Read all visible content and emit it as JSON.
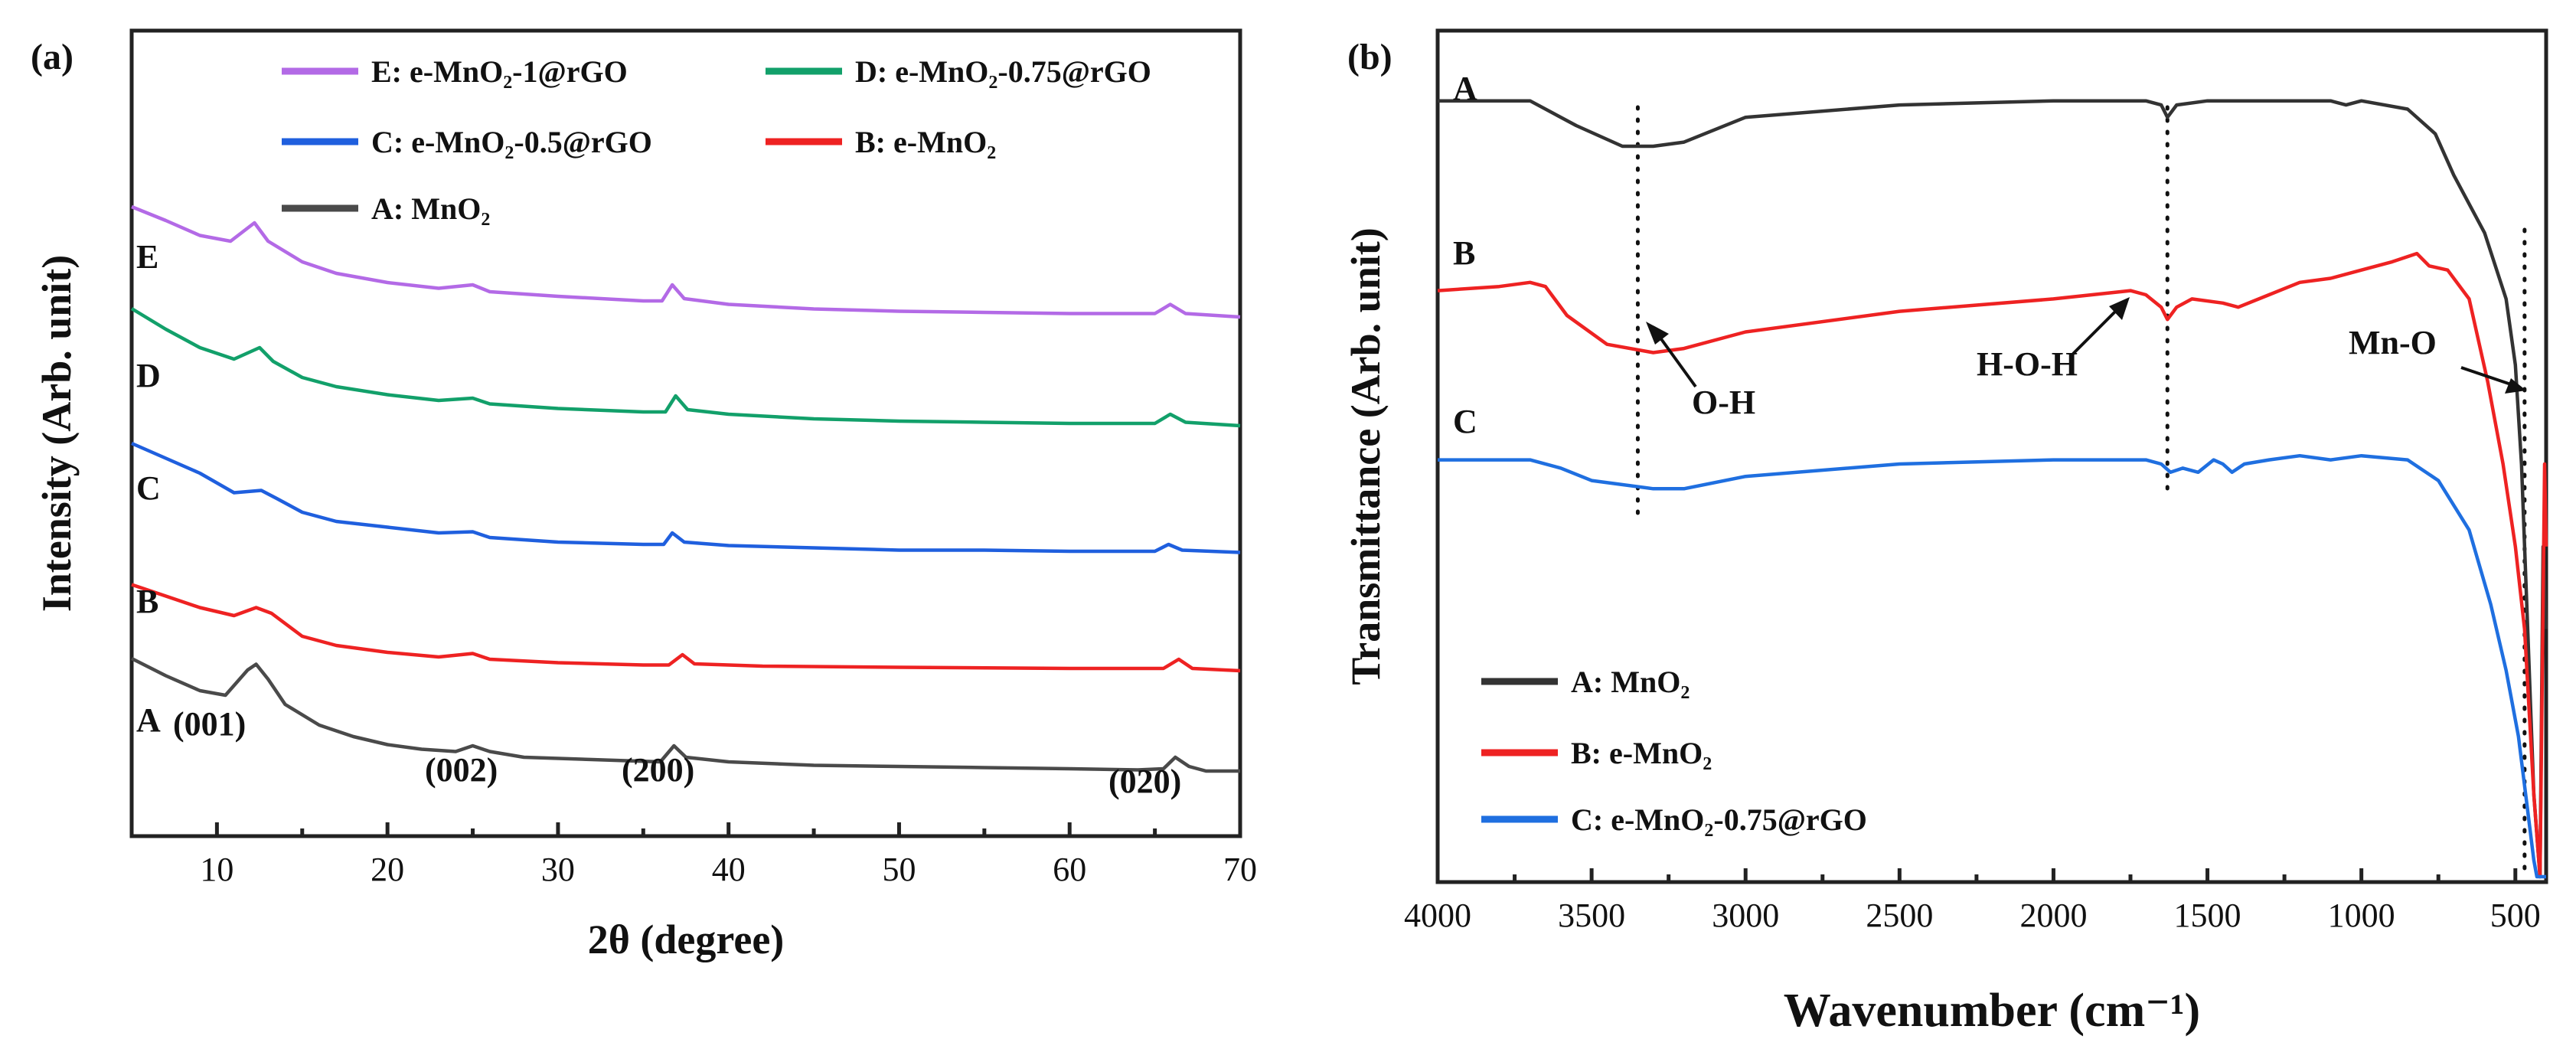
{
  "chart_data": [
    {
      "type": "line",
      "panel": "(a)",
      "xlabel": "2θ (degree)",
      "ylabel": "Intensity (Arb. unit)",
      "xlim": [
        5,
        70
      ],
      "xticks": [
        10,
        20,
        30,
        40,
        50,
        60,
        70
      ],
      "yticks": "none (arbitrary units)",
      "legend_location": "top",
      "legend": [
        "E: e-MnO₂-1@rGO",
        "D: e-MnO₂-0.75@rGO",
        "C: e-MnO₂-0.5@rGO",
        "B: e-MnO₂",
        "A: MnO₂"
      ],
      "peak_labels": [
        {
          "text": "(001)",
          "x": 12.3
        },
        {
          "text": "(002)",
          "x": 25
        },
        {
          "text": "(200)",
          "x": 37
        },
        {
          "text": "(020)",
          "x": 66
        }
      ],
      "series": [
        {
          "name": "A",
          "label": "A: MnO₂",
          "color": "#4a4a4a",
          "offset": 0,
          "points": [
            [
              5,
              1.0
            ],
            [
              7,
              0.85
            ],
            [
              9,
              0.72
            ],
            [
              10.5,
              0.68
            ],
            [
              11.8,
              0.9
            ],
            [
              12.3,
              0.95
            ],
            [
              13,
              0.82
            ],
            [
              14,
              0.6
            ],
            [
              16,
              0.42
            ],
            [
              18,
              0.32
            ],
            [
              20,
              0.25
            ],
            [
              22,
              0.21
            ],
            [
              24,
              0.19
            ],
            [
              25,
              0.24
            ],
            [
              26,
              0.19
            ],
            [
              28,
              0.14
            ],
            [
              32,
              0.12
            ],
            [
              36,
              0.1
            ],
            [
              36.8,
              0.24
            ],
            [
              37.5,
              0.14
            ],
            [
              40,
              0.1
            ],
            [
              45,
              0.07
            ],
            [
              50,
              0.06
            ],
            [
              55,
              0.05
            ],
            [
              60,
              0.04
            ],
            [
              64,
              0.03
            ],
            [
              65.5,
              0.04
            ],
            [
              66.2,
              0.14
            ],
            [
              67,
              0.06
            ],
            [
              68,
              0.02
            ],
            [
              70,
              0.02
            ]
          ]
        },
        {
          "name": "B",
          "label": "B: e-MnO₂",
          "color": "#ee2222",
          "offset": 1,
          "points": [
            [
              5,
              0.75
            ],
            [
              7,
              0.65
            ],
            [
              9,
              0.55
            ],
            [
              11,
              0.48
            ],
            [
              12.3,
              0.55
            ],
            [
              13.2,
              0.5
            ],
            [
              15,
              0.3
            ],
            [
              17,
              0.22
            ],
            [
              20,
              0.16
            ],
            [
              23,
              0.12
            ],
            [
              25,
              0.15
            ],
            [
              26,
              0.1
            ],
            [
              30,
              0.07
            ],
            [
              35,
              0.05
            ],
            [
              36.5,
              0.05
            ],
            [
              37.3,
              0.14
            ],
            [
              38,
              0.06
            ],
            [
              42,
              0.04
            ],
            [
              50,
              0.03
            ],
            [
              60,
              0.02
            ],
            [
              65.5,
              0.02
            ],
            [
              66.4,
              0.1
            ],
            [
              67.2,
              0.02
            ],
            [
              70,
              0.0
            ]
          ]
        },
        {
          "name": "C",
          "label": "C: e-MnO₂-0.5@rGO",
          "color": "#1f5fde",
          "offset": 2,
          "points": [
            [
              5,
              0.98
            ],
            [
              7,
              0.85
            ],
            [
              9,
              0.72
            ],
            [
              11,
              0.55
            ],
            [
              12.6,
              0.57
            ],
            [
              13.5,
              0.5
            ],
            [
              15,
              0.38
            ],
            [
              17,
              0.3
            ],
            [
              20,
              0.25
            ],
            [
              23,
              0.2
            ],
            [
              25,
              0.21
            ],
            [
              26,
              0.16
            ],
            [
              30,
              0.12
            ],
            [
              35,
              0.1
            ],
            [
              36.2,
              0.1
            ],
            [
              36.7,
              0.2
            ],
            [
              37.4,
              0.12
            ],
            [
              40,
              0.09
            ],
            [
              45,
              0.07
            ],
            [
              50,
              0.05
            ],
            [
              55,
              0.05
            ],
            [
              60,
              0.04
            ],
            [
              65,
              0.04
            ],
            [
              65.8,
              0.1
            ],
            [
              66.6,
              0.05
            ],
            [
              70,
              0.03
            ]
          ]
        },
        {
          "name": "D",
          "label": "D: e-MnO₂-0.75@rGO",
          "color": "#12a06a",
          "offset": 3,
          "points": [
            [
              5,
              1.08
            ],
            [
              7,
              0.9
            ],
            [
              9,
              0.74
            ],
            [
              11,
              0.64
            ],
            [
              12.5,
              0.74
            ],
            [
              13.3,
              0.62
            ],
            [
              15,
              0.48
            ],
            [
              17,
              0.4
            ],
            [
              20,
              0.33
            ],
            [
              23,
              0.28
            ],
            [
              25,
              0.3
            ],
            [
              26,
              0.25
            ],
            [
              30,
              0.21
            ],
            [
              35,
              0.18
            ],
            [
              36.3,
              0.18
            ],
            [
              36.9,
              0.32
            ],
            [
              37.6,
              0.2
            ],
            [
              40,
              0.16
            ],
            [
              45,
              0.12
            ],
            [
              50,
              0.1
            ],
            [
              55,
              0.09
            ],
            [
              60,
              0.08
            ],
            [
              65,
              0.08
            ],
            [
              65.9,
              0.16
            ],
            [
              66.8,
              0.09
            ],
            [
              70,
              0.06
            ]
          ]
        },
        {
          "name": "E",
          "label": "E: e-MnO₂-1@rGO",
          "color": "#b36ae6",
          "offset": 4,
          "points": [
            [
              5,
              1.0
            ],
            [
              7,
              0.88
            ],
            [
              9,
              0.75
            ],
            [
              10.8,
              0.7
            ],
            [
              12.2,
              0.86
            ],
            [
              13,
              0.7
            ],
            [
              15,
              0.52
            ],
            [
              17,
              0.42
            ],
            [
              20,
              0.34
            ],
            [
              23,
              0.29
            ],
            [
              25,
              0.32
            ],
            [
              26,
              0.26
            ],
            [
              30,
              0.22
            ],
            [
              35,
              0.18
            ],
            [
              36.1,
              0.18
            ],
            [
              36.7,
              0.32
            ],
            [
              37.4,
              0.2
            ],
            [
              40,
              0.15
            ],
            [
              45,
              0.11
            ],
            [
              50,
              0.09
            ],
            [
              55,
              0.08
            ],
            [
              60,
              0.07
            ],
            [
              65,
              0.07
            ],
            [
              65.9,
              0.15
            ],
            [
              66.8,
              0.07
            ],
            [
              70,
              0.04
            ]
          ]
        }
      ]
    },
    {
      "type": "line",
      "panel": "(b)",
      "xlabel": "Wavenumber (cm⁻¹)",
      "ylabel": "Transmittance (Arb. unit)",
      "xlim": [
        4000,
        400
      ],
      "xticks": [
        4000,
        3500,
        3000,
        2500,
        2000,
        1500,
        1000,
        500
      ],
      "yticks": "none (arbitrary units)",
      "legend_location": "bottom-left",
      "legend": [
        "A: MnO₂",
        "B: e-MnO₂",
        "C: e-MnO₂-0.75@rGO"
      ],
      "annotations": [
        {
          "text": "O-H",
          "x": 3350
        },
        {
          "text": "H-O-H",
          "x": 1630
        },
        {
          "text": "Mn-O",
          "x": 470
        }
      ],
      "guide_lines_x": [
        3350,
        1630,
        470
      ],
      "series": [
        {
          "name": "A",
          "label": "A: MnO₂",
          "color": "#333333",
          "points": [
            [
              4000,
              0.94
            ],
            [
              3700,
              0.94
            ],
            [
              3550,
              0.91
            ],
            [
              3400,
              0.885
            ],
            [
              3300,
              0.885
            ],
            [
              3200,
              0.89
            ],
            [
              3000,
              0.92
            ],
            [
              2500,
              0.935
            ],
            [
              2000,
              0.94
            ],
            [
              1700,
              0.94
            ],
            [
              1650,
              0.935
            ],
            [
              1630,
              0.92
            ],
            [
              1600,
              0.935
            ],
            [
              1500,
              0.94
            ],
            [
              1200,
              0.94
            ],
            [
              1100,
              0.94
            ],
            [
              1050,
              0.935
            ],
            [
              1000,
              0.94
            ],
            [
              850,
              0.93
            ],
            [
              760,
              0.9
            ],
            [
              700,
              0.85
            ],
            [
              600,
              0.78
            ],
            [
              530,
              0.7
            ],
            [
              500,
              0.62
            ],
            [
              480,
              0.5
            ],
            [
              460,
              0.3
            ],
            [
              440,
              0.1
            ],
            [
              420,
              0.0
            ],
            [
              410,
              0.4
            ],
            [
              400,
              0.3
            ]
          ]
        },
        {
          "name": "B",
          "label": "B: e-MnO₂",
          "color": "#ee2222",
          "points": [
            [
              4000,
              0.71
            ],
            [
              3800,
              0.715
            ],
            [
              3700,
              0.72
            ],
            [
              3650,
              0.715
            ],
            [
              3580,
              0.68
            ],
            [
              3450,
              0.645
            ],
            [
              3300,
              0.635
            ],
            [
              3200,
              0.64
            ],
            [
              3000,
              0.66
            ],
            [
              2500,
              0.685
            ],
            [
              2000,
              0.7
            ],
            [
              1750,
              0.71
            ],
            [
              1700,
              0.705
            ],
            [
              1650,
              0.69
            ],
            [
              1630,
              0.675
            ],
            [
              1600,
              0.69
            ],
            [
              1550,
              0.7
            ],
            [
              1450,
              0.695
            ],
            [
              1400,
              0.69
            ],
            [
              1300,
              0.705
            ],
            [
              1200,
              0.72
            ],
            [
              1100,
              0.725
            ],
            [
              1000,
              0.735
            ],
            [
              900,
              0.745
            ],
            [
              820,
              0.755
            ],
            [
              780,
              0.74
            ],
            [
              720,
              0.735
            ],
            [
              650,
              0.7
            ],
            [
              590,
              0.6
            ],
            [
              540,
              0.5
            ],
            [
              500,
              0.4
            ],
            [
              470,
              0.3
            ],
            [
              440,
              0.1
            ],
            [
              420,
              0.0
            ],
            [
              405,
              0.5
            ],
            [
              400,
              0.4
            ]
          ]
        },
        {
          "name": "C",
          "label": "C: e-MnO₂-0.75@rGO",
          "color": "#1f6fe0",
          "points": [
            [
              4000,
              0.505
            ],
            [
              3700,
              0.505
            ],
            [
              3600,
              0.495
            ],
            [
              3500,
              0.48
            ],
            [
              3300,
              0.47
            ],
            [
              3200,
              0.47
            ],
            [
              3000,
              0.485
            ],
            [
              2500,
              0.5
            ],
            [
              2000,
              0.505
            ],
            [
              1700,
              0.505
            ],
            [
              1650,
              0.5
            ],
            [
              1620,
              0.49
            ],
            [
              1580,
              0.495
            ],
            [
              1530,
              0.49
            ],
            [
              1480,
              0.505
            ],
            [
              1450,
              0.5
            ],
            [
              1420,
              0.49
            ],
            [
              1380,
              0.5
            ],
            [
              1300,
              0.505
            ],
            [
              1200,
              0.51
            ],
            [
              1100,
              0.505
            ],
            [
              1000,
              0.51
            ],
            [
              850,
              0.505
            ],
            [
              750,
              0.48
            ],
            [
              650,
              0.42
            ],
            [
              580,
              0.33
            ],
            [
              530,
              0.25
            ],
            [
              490,
              0.17
            ],
            [
              460,
              0.08
            ],
            [
              440,
              0.02
            ],
            [
              430,
              0.0
            ],
            [
              400,
              0.0
            ]
          ]
        }
      ]
    }
  ]
}
